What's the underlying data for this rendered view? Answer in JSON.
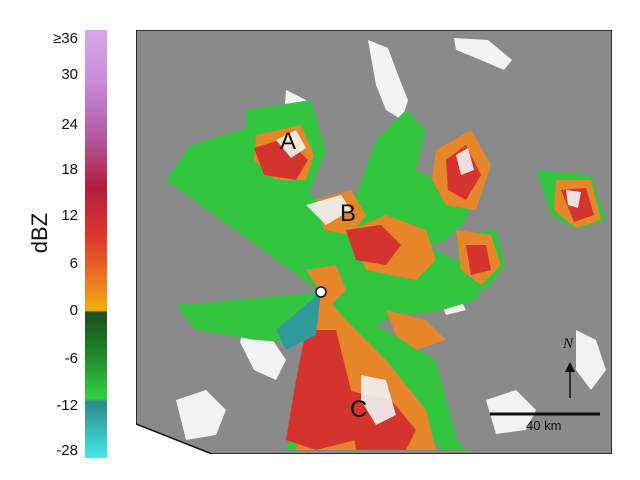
{
  "colorbar": {
    "unit": "dBZ",
    "ticks": [
      "≥36",
      "30",
      "24",
      "18",
      "12",
      "6",
      "0",
      "-6",
      "-12",
      "-28"
    ],
    "colors": [
      "#d9a7e8",
      "#b277c8",
      "#a03a6e",
      "#c0203a",
      "#e03a2c",
      "#ef8a1c",
      "#f0b000",
      "#1a5a20",
      "#29c23a",
      "#2f9a9a",
      "#44e6e6"
    ]
  },
  "map": {
    "labels": [
      "A",
      "B",
      "C"
    ],
    "north_label": "N",
    "scale_label": "40 km",
    "colors": {
      "background": "#8a8a8a",
      "terrain": "#f2f2f2",
      "weak": "#33c53f",
      "moderate": "#e7852a",
      "strong": "#d4342d"
    }
  }
}
